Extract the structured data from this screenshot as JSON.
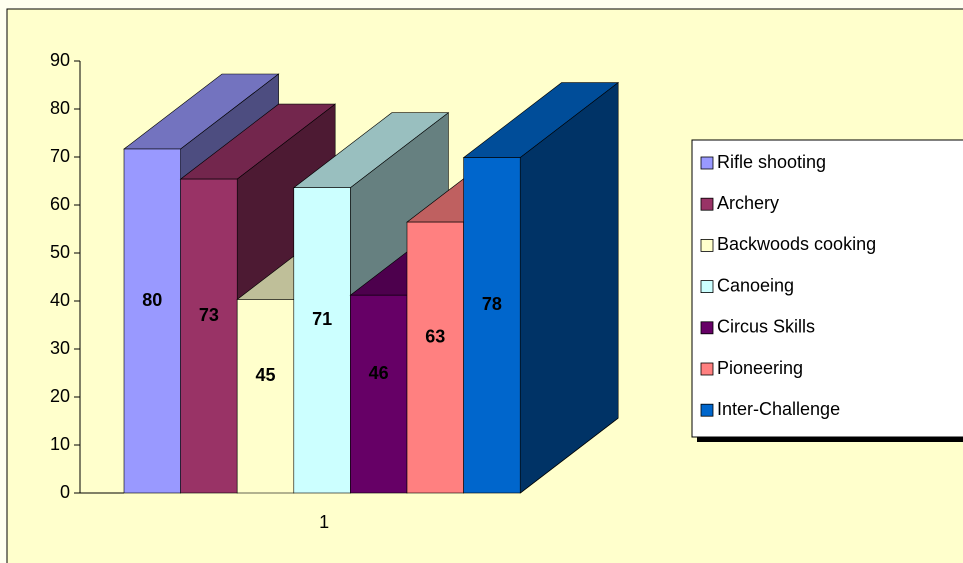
{
  "chart_data": {
    "type": "bar3d",
    "categories": [
      "1"
    ],
    "series": [
      {
        "name": "Rifle shooting",
        "color": "#9999ff",
        "values": [
          80
        ]
      },
      {
        "name": "Archery",
        "color": "#993366",
        "values": [
          73
        ]
      },
      {
        "name": "Backwoods cooking",
        "color": "#ffffcc",
        "values": [
          45
        ]
      },
      {
        "name": "Canoeing",
        "color": "#ccffff",
        "values": [
          71
        ]
      },
      {
        "name": "Circus Skills",
        "color": "#660066",
        "values": [
          46
        ]
      },
      {
        "name": "Pioneering",
        "color": "#ff8080",
        "values": [
          63
        ]
      },
      {
        "name": "Inter-Challenge",
        "color": "#0066cc",
        "values": [
          78
        ]
      }
    ],
    "ylim": [
      0,
      90
    ],
    "yticks": [
      0,
      10,
      20,
      30,
      40,
      50,
      60,
      70,
      80,
      90
    ],
    "legend": "right"
  }
}
